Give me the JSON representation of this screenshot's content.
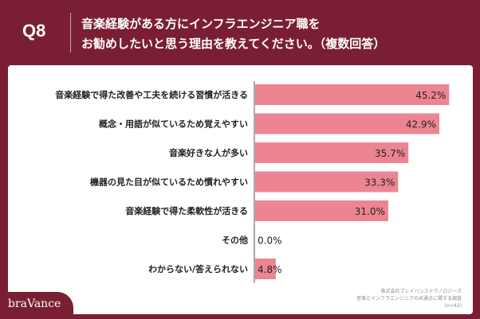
{
  "header": {
    "question_number": "Q8",
    "title_line1": "音楽経験がある方にインフラエンジニア職を",
    "title_line2": "お勧めしたいと思う理由を教えてください。（複数回答）"
  },
  "chart_data": {
    "type": "bar",
    "orientation": "horizontal",
    "categories": [
      "音楽経験で得た改善や工夫を続ける習慣が活きる",
      "概念・用語が似ているため覚えやすい",
      "音楽好きな人が多い",
      "機器の見た目が似ているため慣れやすい",
      "音楽経験で得た柔軟性が活きる",
      "その他",
      "わからない/答えられない"
    ],
    "values": [
      45.2,
      42.9,
      35.7,
      33.3,
      31.0,
      0.0,
      4.8
    ],
    "value_labels": [
      "45.2%",
      "42.9%",
      "35.7%",
      "33.3%",
      "31.0%",
      "0.0%",
      "4.8%"
    ],
    "xlim": [
      0,
      60
    ],
    "grid": false,
    "legend": "none",
    "bar_color": "#ec8591"
  },
  "footer": {
    "source_line1": "株式会社ブレイバンステクノロジーズ",
    "source_line2": "音楽とインフラエンジニアの共通点に関する調査",
    "sample_size": "(n=42)"
  },
  "brand": {
    "name": "braVance"
  },
  "colors": {
    "background": "#7a1f33",
    "bar": "#ec8591",
    "axis": "#555555"
  }
}
